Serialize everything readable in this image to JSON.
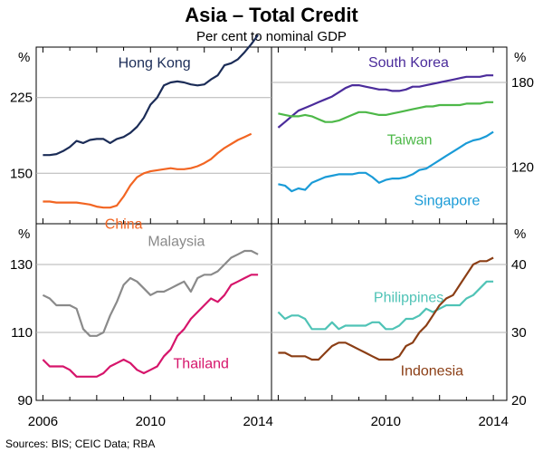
{
  "title": "Asia – Total Credit",
  "subtitle": "Per cent to nominal GDP",
  "source": "Sources:  BIS; CEIC Data; RBA",
  "x_ticks": [
    "2006",
    "2010",
    "2014"
  ],
  "x_tick_values": [
    2006,
    2010,
    2014
  ],
  "chart_data": [
    {
      "type": "line",
      "panel": "top-left",
      "unit": "%",
      "xlim": [
        2005.75,
        2014.5
      ],
      "ylim": [
        100,
        275
      ],
      "yticks": [
        150,
        225
      ],
      "ytick_labels": [
        "150",
        "225"
      ],
      "series": [
        {
          "name": "Hong Kong",
          "color": "#1b2c57",
          "x": [
            2006.0,
            2006.25,
            2006.5,
            2006.75,
            2007.0,
            2007.25,
            2007.5,
            2007.75,
            2008.0,
            2008.25,
            2008.5,
            2008.75,
            2009.0,
            2009.25,
            2009.5,
            2009.75,
            2010.0,
            2010.25,
            2010.5,
            2010.75,
            2011.0,
            2011.25,
            2011.5,
            2011.75,
            2012.0,
            2012.25,
            2012.5,
            2012.75,
            2013.0,
            2013.25,
            2013.5,
            2013.75,
            2014.0
          ],
          "y": [
            168,
            168,
            169,
            172,
            176,
            182,
            180,
            183,
            184,
            184,
            180,
            184,
            186,
            190,
            196,
            205,
            218,
            225,
            237,
            240,
            241,
            240,
            238,
            237,
            238,
            243,
            247,
            257,
            259,
            263,
            270,
            278,
            287
          ]
        },
        {
          "name": "China",
          "color": "#f26522",
          "x": [
            2006.0,
            2006.25,
            2006.5,
            2006.75,
            2007.0,
            2007.25,
            2007.5,
            2007.75,
            2008.0,
            2008.25,
            2008.5,
            2008.75,
            2009.0,
            2009.25,
            2009.5,
            2009.75,
            2010.0,
            2010.25,
            2010.5,
            2010.75,
            2011.0,
            2011.25,
            2011.5,
            2011.75,
            2012.0,
            2012.25,
            2012.5,
            2012.75,
            2013.0,
            2013.25,
            2013.5,
            2013.75
          ],
          "y": [
            122,
            122,
            121,
            121,
            121,
            121,
            120,
            119,
            117,
            116,
            116,
            118,
            127,
            138,
            146,
            150,
            152,
            153,
            154,
            155,
            154,
            154,
            155,
            157,
            160,
            164,
            170,
            175,
            179,
            183,
            186,
            189
          ]
        }
      ],
      "labels": [
        {
          "text": "Hong Kong",
          "x": 2008.8,
          "y": 255,
          "color": "#1b2c57"
        },
        {
          "text": "China",
          "x": 2008.3,
          "y": 95,
          "color": "#f26522"
        }
      ]
    },
    {
      "type": "line",
      "panel": "top-right",
      "unit": "%",
      "xlim": [
        2005.75,
        2014.5
      ],
      "ylim": [
        80,
        205
      ],
      "yticks": [
        120,
        180
      ],
      "ytick_labels": [
        "120",
        "180"
      ],
      "series": [
        {
          "name": "South Korea",
          "color": "#4b2c9b",
          "x": [
            2006.0,
            2006.25,
            2006.5,
            2006.75,
            2007.0,
            2007.25,
            2007.5,
            2007.75,
            2008.0,
            2008.25,
            2008.5,
            2008.75,
            2009.0,
            2009.25,
            2009.5,
            2009.75,
            2010.0,
            2010.25,
            2010.5,
            2010.75,
            2011.0,
            2011.25,
            2011.5,
            2011.75,
            2012.0,
            2012.25,
            2012.5,
            2012.75,
            2013.0,
            2013.25,
            2013.5,
            2013.75,
            2014.0
          ],
          "y": [
            148,
            152,
            156,
            160,
            162,
            164,
            166,
            168,
            170,
            173,
            176,
            178,
            178,
            177,
            176,
            175,
            175,
            174,
            174,
            175,
            177,
            177,
            178,
            179,
            180,
            181,
            182,
            183,
            184,
            184,
            184,
            185,
            185
          ]
        },
        {
          "name": "Taiwan",
          "color": "#4db848",
          "x": [
            2006.0,
            2006.25,
            2006.5,
            2006.75,
            2007.0,
            2007.25,
            2007.5,
            2007.75,
            2008.0,
            2008.25,
            2008.5,
            2008.75,
            2009.0,
            2009.25,
            2009.5,
            2009.75,
            2010.0,
            2010.25,
            2010.5,
            2010.75,
            2011.0,
            2011.25,
            2011.5,
            2011.75,
            2012.0,
            2012.25,
            2012.5,
            2012.75,
            2013.0,
            2013.25,
            2013.5,
            2013.75,
            2014.0
          ],
          "y": [
            158,
            157,
            156,
            156,
            157,
            156,
            154,
            152,
            152,
            153,
            155,
            157,
            159,
            159,
            158,
            157,
            157,
            158,
            159,
            160,
            161,
            162,
            163,
            163,
            164,
            164,
            164,
            164,
            165,
            165,
            165,
            166,
            166
          ]
        },
        {
          "name": "Singapore",
          "color": "#1a9bd7",
          "x": [
            2006.0,
            2006.25,
            2006.5,
            2006.75,
            2007.0,
            2007.25,
            2007.5,
            2007.75,
            2008.0,
            2008.25,
            2008.5,
            2008.75,
            2009.0,
            2009.25,
            2009.5,
            2009.75,
            2010.0,
            2010.25,
            2010.5,
            2010.75,
            2011.0,
            2011.25,
            2011.5,
            2011.75,
            2012.0,
            2012.25,
            2012.5,
            2012.75,
            2013.0,
            2013.25,
            2013.5,
            2013.75,
            2014.0
          ],
          "y": [
            108,
            107,
            103,
            105,
            104,
            109,
            111,
            113,
            114,
            115,
            115,
            115,
            116,
            116,
            113,
            109,
            111,
            112,
            112,
            113,
            115,
            118,
            119,
            122,
            125,
            128,
            131,
            134,
            137,
            139,
            140,
            142,
            145
          ]
        }
      ],
      "labels": [
        {
          "text": "South Korea",
          "x": 2009.35,
          "y": 191,
          "color": "#4b2c9b"
        },
        {
          "text": "Taiwan",
          "x": 2010.05,
          "y": 136,
          "color": "#4db848"
        },
        {
          "text": "Singapore",
          "x": 2011.05,
          "y": 93,
          "color": "#1a9bd7"
        }
      ]
    },
    {
      "type": "line",
      "panel": "bottom-left",
      "unit": "%",
      "xlim": [
        2005.75,
        2014.5
      ],
      "ylim": [
        90,
        142
      ],
      "yticks": [
        90,
        110,
        130
      ],
      "ytick_labels": [
        "90",
        "110",
        "130"
      ],
      "series": [
        {
          "name": "Malaysia",
          "color": "#8a8a8a",
          "x": [
            2006.0,
            2006.25,
            2006.5,
            2006.75,
            2007.0,
            2007.25,
            2007.5,
            2007.75,
            2008.0,
            2008.25,
            2008.5,
            2008.75,
            2009.0,
            2009.25,
            2009.5,
            2009.75,
            2010.0,
            2010.25,
            2010.5,
            2010.75,
            2011.0,
            2011.25,
            2011.5,
            2011.75,
            2012.0,
            2012.25,
            2012.5,
            2012.75,
            2013.0,
            2013.25,
            2013.5,
            2013.75,
            2014.0
          ],
          "y": [
            121,
            120,
            118,
            118,
            118,
            117,
            111,
            109,
            109,
            110,
            115,
            119,
            124,
            126,
            125,
            123,
            121,
            122,
            122,
            123,
            124,
            125,
            122,
            126,
            127,
            127,
            128,
            130,
            132,
            133,
            134,
            134,
            133
          ]
        },
        {
          "name": "Thailand",
          "color": "#d6156b",
          "x": [
            2006.0,
            2006.25,
            2006.5,
            2006.75,
            2007.0,
            2007.25,
            2007.5,
            2007.75,
            2008.0,
            2008.25,
            2008.5,
            2008.75,
            2009.0,
            2009.25,
            2009.5,
            2009.75,
            2010.0,
            2010.25,
            2010.5,
            2010.75,
            2011.0,
            2011.25,
            2011.5,
            2011.75,
            2012.0,
            2012.25,
            2012.5,
            2012.75,
            2013.0,
            2013.25,
            2013.5,
            2013.75,
            2014.0
          ],
          "y": [
            102,
            100,
            100,
            100,
            99,
            97,
            97,
            97,
            97,
            98,
            100,
            101,
            102,
            101,
            99,
            98,
            99,
            100,
            103,
            105,
            109,
            111,
            114,
            116,
            118,
            120,
            119,
            121,
            124,
            125,
            126,
            127,
            127
          ]
        }
      ],
      "labels": [
        {
          "text": "Malaysia",
          "x": 2009.9,
          "y": 135.5,
          "color": "#8a8a8a"
        },
        {
          "text": "Thailand",
          "x": 2010.85,
          "y": 99.5,
          "color": "#d6156b"
        }
      ]
    },
    {
      "type": "line",
      "panel": "bottom-right",
      "unit": "%",
      "xlim": [
        2005.75,
        2014.5
      ],
      "ylim": [
        20,
        46
      ],
      "yticks": [
        20,
        30,
        40
      ],
      "ytick_labels": [
        "20",
        "30",
        "40"
      ],
      "series": [
        {
          "name": "Philippines",
          "color": "#4fc3b6",
          "x": [
            2006.0,
            2006.25,
            2006.5,
            2006.75,
            2007.0,
            2007.25,
            2007.5,
            2007.75,
            2008.0,
            2008.25,
            2008.5,
            2008.75,
            2009.0,
            2009.25,
            2009.5,
            2009.75,
            2010.0,
            2010.25,
            2010.5,
            2010.75,
            2011.0,
            2011.25,
            2011.5,
            2011.75,
            2012.0,
            2012.25,
            2012.5,
            2012.75,
            2013.0,
            2013.25,
            2013.5,
            2013.75,
            2014.0
          ],
          "y": [
            33,
            32,
            32.5,
            32.5,
            32,
            30.5,
            30.5,
            30.5,
            31.5,
            30.5,
            31,
            31,
            31,
            31,
            31.5,
            31.5,
            30.5,
            30.5,
            31,
            32,
            32,
            32.5,
            33.5,
            33,
            33.5,
            34,
            34,
            34,
            35,
            35.5,
            36.5,
            37.5,
            37.5
          ]
        },
        {
          "name": "Indonesia",
          "color": "#8b3e15",
          "x": [
            2006.0,
            2006.25,
            2006.5,
            2006.75,
            2007.0,
            2007.25,
            2007.5,
            2007.75,
            2008.0,
            2008.25,
            2008.5,
            2008.75,
            2009.0,
            2009.25,
            2009.5,
            2009.75,
            2010.0,
            2010.25,
            2010.5,
            2010.75,
            2011.0,
            2011.25,
            2011.5,
            2011.75,
            2012.0,
            2012.25,
            2012.5,
            2012.75,
            2013.0,
            2013.25,
            2013.5,
            2013.75,
            2014.0
          ],
          "y": [
            27,
            27,
            26.5,
            26.5,
            26.5,
            26,
            26,
            27,
            28,
            28.5,
            28.5,
            28,
            27.5,
            27,
            26.5,
            26,
            26,
            26,
            26.5,
            28,
            28.5,
            30,
            31,
            32.5,
            34,
            35,
            35.5,
            37,
            38.5,
            40,
            40.5,
            40.5,
            41
          ]
        }
      ],
      "labels": [
        {
          "text": "Philippines",
          "x": 2009.55,
          "y": 34.5,
          "color": "#4fc3b6"
        },
        {
          "text": "Indonesia",
          "x": 2010.55,
          "y": 23.7,
          "color": "#8b3e15"
        }
      ]
    }
  ]
}
